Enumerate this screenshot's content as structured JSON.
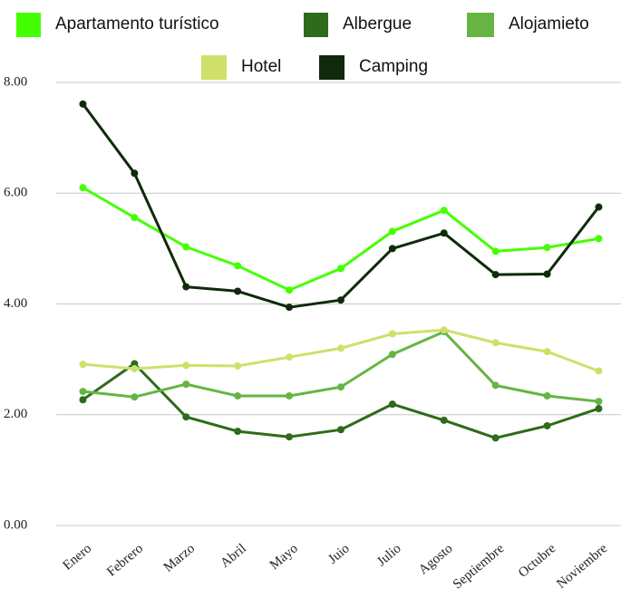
{
  "chart_data": {
    "type": "line",
    "categories": [
      "Enero",
      "Febrero",
      "Marzo",
      "Abril",
      "Mayo",
      "Juio",
      "Julio",
      "Agosto",
      "Septiembre",
      "Octubre",
      "Noviembre"
    ],
    "series": [
      {
        "name": "Apartamento turístico",
        "color": "#44ff00",
        "values": [
          6.1,
          5.56,
          5.03,
          4.69,
          4.25,
          4.64,
          5.31,
          5.69,
          4.95,
          5.02,
          5.18
        ]
      },
      {
        "name": "Albergue",
        "color": "#2e6b1a",
        "values": [
          2.27,
          2.92,
          1.96,
          1.7,
          1.6,
          1.73,
          2.19,
          1.9,
          1.58,
          1.8,
          2.11
        ]
      },
      {
        "name": "Alojamieto",
        "color": "#66b544",
        "values": [
          2.42,
          2.32,
          2.55,
          2.34,
          2.34,
          2.5,
          3.09,
          3.5,
          2.53,
          2.34,
          2.24
        ]
      },
      {
        "name": "Hotel",
        "color": "#cfe06a",
        "values": [
          2.91,
          2.83,
          2.89,
          2.88,
          3.04,
          3.2,
          3.46,
          3.53,
          3.3,
          3.14,
          2.79
        ]
      },
      {
        "name": "Camping",
        "color": "#0f2a0a",
        "values": [
          7.61,
          6.36,
          4.31,
          4.23,
          3.94,
          4.07,
          5.0,
          5.28,
          4.53,
          4.54,
          5.75
        ]
      }
    ],
    "ylim": [
      0,
      8
    ],
    "yticks": [
      {
        "value": 0,
        "label": "0.00"
      },
      {
        "value": 2,
        "label": "2.00"
      },
      {
        "value": 4,
        "label": "4.00"
      },
      {
        "value": 6,
        "label": "6.00"
      },
      {
        "value": 8,
        "label": "8.00"
      }
    ],
    "grid": true,
    "legend": "top"
  }
}
